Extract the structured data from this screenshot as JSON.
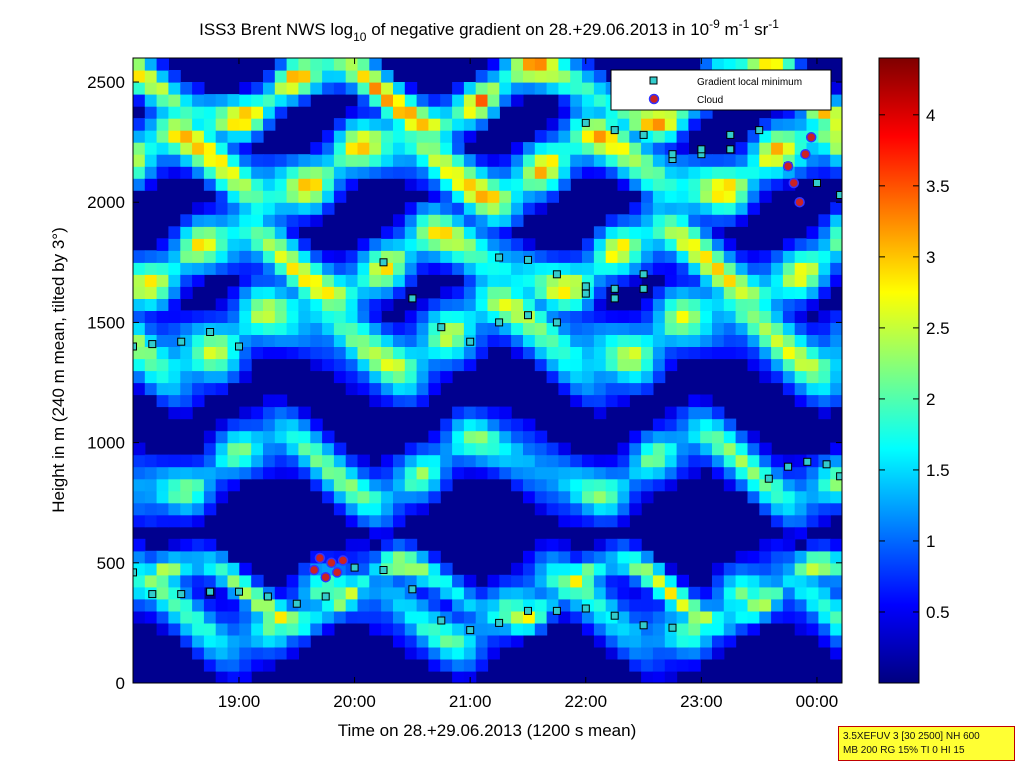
{
  "chart_data": {
    "type": "heatmap",
    "title": "ISS3 Brent NWS log10 of negative gradient on 28.+29.06.2013 in 10-9 m-1 sr-1",
    "title_parts": {
      "pre": "ISS3 Brent NWS log",
      "sub": "10",
      "mid": " of negative gradient on 28.+29.06.2013 in 10",
      "sup1": "-9",
      "mid2": " m",
      "sup2": "-1",
      "end": " sr",
      "sup3": "-1"
    },
    "xlabel": "Time on 28.+29.06.2013 (1200 s mean)",
    "ylabel": "Height in m (240 m mean, tilted by 3°)",
    "xlim": [
      "18:05",
      "00:13"
    ],
    "ylim": [
      0,
      2600
    ],
    "x_ticks": [
      "19:00",
      "20:00",
      "21:00",
      "22:00",
      "23:00",
      "00:00"
    ],
    "y_ticks": [
      0,
      500,
      1000,
      1500,
      2000,
      2500
    ],
    "colorbar": {
      "min": 0,
      "max": 4.4,
      "ticks": [
        0.5,
        1,
        1.5,
        2,
        2.5,
        3,
        3.5,
        4
      ],
      "colormap": "jet"
    },
    "legend": {
      "position": "top-right",
      "entries": [
        {
          "label": "Gradient local minimum",
          "marker": "square",
          "color": "#33cccc"
        },
        {
          "label": "Cloud",
          "marker": "circle",
          "color": "#cc2222"
        }
      ]
    },
    "series": [
      {
        "name": "Gradient local minimum",
        "x": [
          "18:05",
          "18:15",
          "18:30",
          "18:45",
          "19:00",
          "19:15",
          "19:30",
          "19:45",
          "20:00",
          "20:15",
          "20:30",
          "20:45",
          "21:00",
          "21:15",
          "21:30",
          "21:45",
          "22:00",
          "22:15",
          "22:30",
          "22:45"
        ],
        "y": [
          460,
          370,
          370,
          380,
          380,
          360,
          330,
          360,
          480,
          470,
          390,
          260,
          220,
          250,
          300,
          300,
          310,
          280,
          240,
          230
        ]
      },
      {
        "name": "Gradient local minimum",
        "x": [
          "18:05",
          "18:15",
          "18:30",
          "18:45",
          "19:00"
        ],
        "y": [
          1400,
          1410,
          1420,
          1460,
          1400
        ]
      },
      {
        "name": "Gradient local minimum",
        "x": [
          "20:15",
          "20:30",
          "20:45",
          "21:00",
          "21:15",
          "21:30",
          "21:45",
          "22:00",
          "22:15",
          "22:30"
        ],
        "y": [
          1750,
          1600,
          1480,
          1420,
          1500,
          1530,
          1500,
          1620,
          1600,
          1700
        ]
      },
      {
        "name": "Gradient local minimum",
        "x": [
          "21:15",
          "21:30",
          "21:45",
          "22:00",
          "22:15",
          "22:30",
          "22:45",
          "23:00",
          "23:15"
        ],
        "y": [
          1770,
          1760,
          1700,
          1650,
          1640,
          1640,
          2180,
          2200,
          2220
        ]
      },
      {
        "name": "Gradient local minimum",
        "x": [
          "23:35",
          "23:45",
          "23:55",
          "00:05",
          "00:12"
        ],
        "y": [
          850,
          900,
          920,
          910,
          860
        ]
      },
      {
        "name": "Gradient local minimum",
        "x": [
          "22:00",
          "22:15",
          "22:30",
          "22:45",
          "23:00",
          "23:15",
          "23:30",
          "23:45",
          "00:00",
          "00:12"
        ],
        "y": [
          2330,
          2300,
          2280,
          2200,
          2220,
          2280,
          2300,
          2150,
          2080,
          2030
        ]
      },
      {
        "name": "Cloud",
        "x": [
          "19:39",
          "19:42",
          "19:45",
          "19:48",
          "19:51",
          "19:54",
          "23:45",
          "23:48",
          "23:51",
          "23:54",
          "23:57"
        ],
        "y": [
          470,
          520,
          440,
          500,
          460,
          510,
          2150,
          2080,
          2000,
          2200,
          2270
        ]
      }
    ]
  },
  "info_box": {
    "line1": "3.5XEFUV 3 [30 2500] NH 600",
    "line2": "MB 200 RG 15% TI 0 HI 15"
  }
}
